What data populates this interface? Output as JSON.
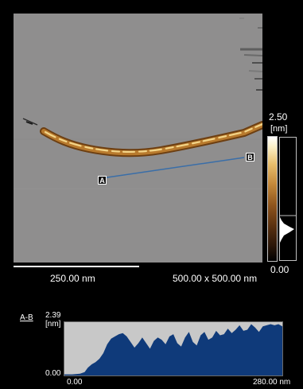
{
  "image": {
    "scale_bar_label": "250.00 nm",
    "scan_size_label": "500.00 x 500.00 nm",
    "colorbar_max": "2.50",
    "colorbar_unit": "[nm]",
    "colorbar_min": "0.00",
    "marker_a": "A",
    "marker_b": "B",
    "colors": {
      "background": "#8f8e8e",
      "fiber_dark": "#7a4b15",
      "fiber_light": "#f4d78f",
      "line": "#3a6ea8"
    }
  },
  "profile": {
    "title": "A-B",
    "y_unit": "[nm]",
    "y_max_label": "2.39",
    "y_min_label": "0.00",
    "x_min_label": "0.00",
    "x_max_label": "280.00 nm",
    "colors": {
      "fill": "#0f3a7a",
      "background": "#c8c8c8"
    }
  },
  "chart_data": {
    "type": "area",
    "title": "A-B",
    "xlabel": "",
    "ylabel": "[nm]",
    "xlim": [
      0,
      280
    ],
    "ylim": [
      0,
      2.39
    ],
    "x": [
      0,
      10,
      20,
      26,
      30,
      35,
      40,
      45,
      50,
      55,
      60,
      65,
      70,
      75,
      80,
      85,
      90,
      95,
      100,
      105,
      110,
      115,
      120,
      125,
      130,
      135,
      140,
      145,
      150,
      155,
      160,
      165,
      170,
      175,
      180,
      185,
      190,
      195,
      200,
      205,
      210,
      215,
      220,
      225,
      230,
      235,
      240,
      245,
      250,
      255,
      260,
      265,
      270,
      275,
      280
    ],
    "y": [
      0.05,
      0.05,
      0.08,
      0.15,
      0.35,
      0.5,
      0.6,
      0.75,
      1.0,
      1.4,
      1.65,
      1.75,
      1.85,
      1.9,
      1.75,
      1.5,
      1.25,
      1.45,
      1.7,
      1.45,
      1.2,
      1.55,
      1.7,
      1.6,
      1.4,
      1.75,
      1.85,
      1.45,
      1.3,
      1.7,
      1.95,
      1.5,
      1.35,
      1.8,
      1.95,
      1.6,
      1.7,
      2.0,
      1.8,
      1.85,
      2.1,
      1.9,
      2.05,
      2.25,
      2.0,
      2.05,
      2.3,
      2.15,
      1.95,
      2.2,
      2.25,
      2.3,
      2.25,
      2.3,
      2.2
    ]
  }
}
